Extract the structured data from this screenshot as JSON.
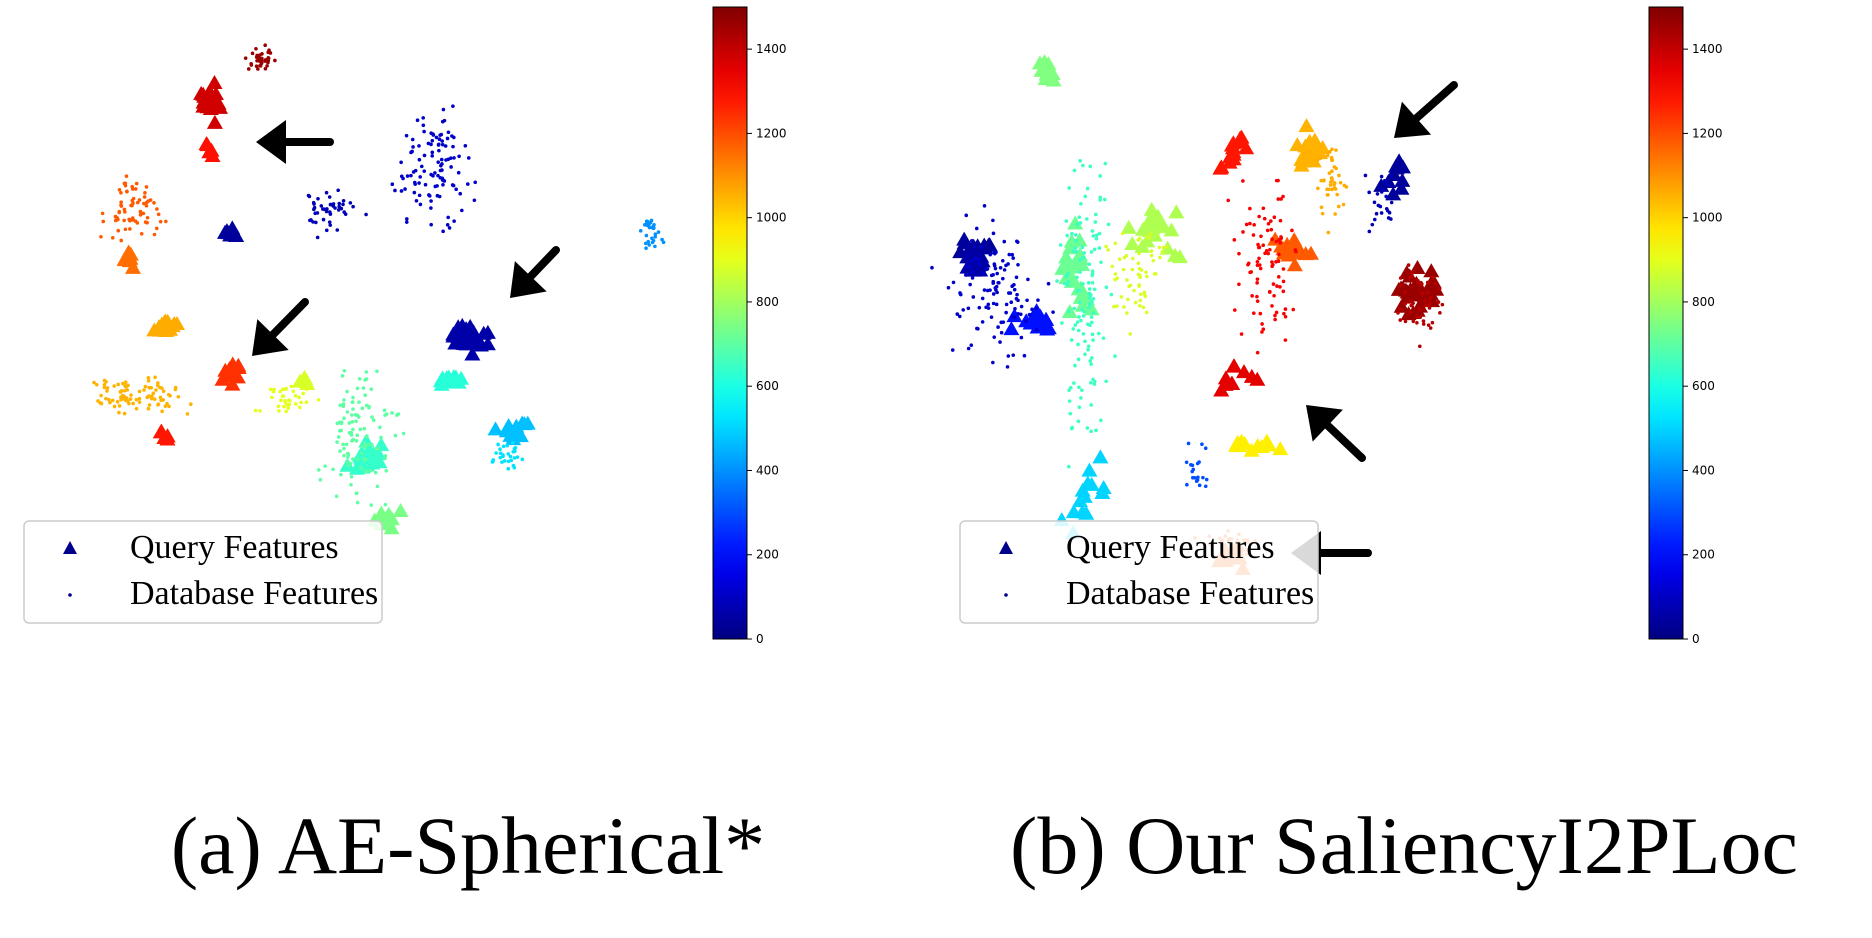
{
  "colors": {
    "query_marker": "#00008b",
    "database_marker": "#00008b",
    "arrow": "#000000",
    "legend_border": "#cccccc"
  },
  "colormap": "jet",
  "chart_data": [
    {
      "type": "scatter",
      "title": "(a) AE-Spherical*",
      "xlabel": "",
      "ylabel": "",
      "grid": false,
      "legend_position": "bottom-left",
      "legend": [
        "Query Features",
        "Database Features"
      ],
      "colorbar": {
        "range": [
          0,
          1500
        ],
        "ticks": [
          0,
          200,
          400,
          600,
          800,
          1000,
          1200,
          1400
        ]
      },
      "arrows": [
        {
          "from": [
            330,
            142
          ],
          "to": [
            256,
            142
          ]
        },
        {
          "from": [
            556,
            250
          ],
          "to": [
            510,
            298
          ]
        },
        {
          "from": [
            305,
            302
          ],
          "to": [
            252,
            356
          ]
        }
      ],
      "clusters": [
        {
          "kind": "query",
          "value": 1380,
          "center": [
            210,
            100
          ],
          "spread": [
            22,
            30
          ],
          "count": 26
        },
        {
          "kind": "database",
          "value": 1460,
          "center": [
            262,
            60
          ],
          "spread": [
            22,
            20
          ],
          "count": 40
        },
        {
          "kind": "query",
          "value": 1290,
          "center": [
            208,
            150
          ],
          "spread": [
            8,
            12
          ],
          "count": 5
        },
        {
          "kind": "query",
          "value": 40,
          "center": [
            232,
            232
          ],
          "spread": [
            18,
            8
          ],
          "count": 8
        },
        {
          "kind": "query",
          "value": 60,
          "center": [
            466,
            340
          ],
          "spread": [
            32,
            25
          ],
          "count": 34
        },
        {
          "kind": "query",
          "value": 620,
          "center": [
            452,
            380
          ],
          "spread": [
            20,
            12
          ],
          "count": 10
        },
        {
          "kind": "query",
          "value": 470,
          "center": [
            515,
            432
          ],
          "spread": [
            24,
            14
          ],
          "count": 14
        },
        {
          "kind": "query",
          "value": 1150,
          "center": [
            130,
            260
          ],
          "spread": [
            12,
            18
          ],
          "count": 10
        },
        {
          "kind": "query",
          "value": 1060,
          "center": [
            165,
            328
          ],
          "spread": [
            22,
            15
          ],
          "count": 14
        },
        {
          "kind": "query",
          "value": 1240,
          "center": [
            232,
            376
          ],
          "spread": [
            20,
            18
          ],
          "count": 16
        },
        {
          "kind": "query",
          "value": 1280,
          "center": [
            162,
            436
          ],
          "spread": [
            14,
            10
          ],
          "count": 6
        },
        {
          "kind": "query",
          "value": 640,
          "center": [
            365,
            460
          ],
          "spread": [
            28,
            26
          ],
          "count": 26
        },
        {
          "kind": "query",
          "value": 740,
          "center": [
            390,
            520
          ],
          "spread": [
            22,
            24
          ],
          "count": 10
        },
        {
          "kind": "query",
          "value": 880,
          "center": [
            305,
            380
          ],
          "spread": [
            12,
            12
          ],
          "count": 6
        },
        {
          "kind": "database",
          "value": 110,
          "center": [
            435,
            170
          ],
          "spread": [
            60,
            95
          ],
          "count": 110
        },
        {
          "kind": "database",
          "value": 80,
          "center": [
            330,
            210
          ],
          "spread": [
            45,
            38
          ],
          "count": 45
        },
        {
          "kind": "database",
          "value": 400,
          "center": [
            650,
            232
          ],
          "spread": [
            18,
            28
          ],
          "count": 30
        },
        {
          "kind": "database",
          "value": 1180,
          "center": [
            130,
            210
          ],
          "spread": [
            55,
            45
          ],
          "count": 70
        },
        {
          "kind": "database",
          "value": 1050,
          "center": [
            140,
            395
          ],
          "spread": [
            90,
            32
          ],
          "count": 90
        },
        {
          "kind": "database",
          "value": 700,
          "center": [
            360,
            440
          ],
          "spread": [
            60,
            110
          ],
          "count": 110
        },
        {
          "kind": "database",
          "value": 520,
          "center": [
            505,
            455
          ],
          "spread": [
            25,
            25
          ],
          "count": 30
        },
        {
          "kind": "database",
          "value": 900,
          "center": [
            290,
            400
          ],
          "spread": [
            45,
            30
          ],
          "count": 35
        }
      ]
    },
    {
      "type": "scatter",
      "title": "(b) Our SaliencyI2PLoc",
      "xlabel": "",
      "ylabel": "",
      "grid": false,
      "legend_position": "bottom-left",
      "legend": [
        "Query Features",
        "Database Features"
      ],
      "colorbar": {
        "range": [
          0,
          1500
        ],
        "ticks": [
          0,
          200,
          400,
          600,
          800,
          1000,
          1200,
          1400
        ]
      },
      "arrows": [
        {
          "from": [
            518,
            85
          ],
          "to": [
            458,
            138
          ]
        },
        {
          "from": [
            426,
            458
          ],
          "to": [
            370,
            405
          ]
        },
        {
          "from": [
            432,
            553
          ],
          "to": [
            355,
            553
          ]
        }
      ],
      "clusters": [
        {
          "kind": "query",
          "value": 40,
          "center": [
            40,
            250
          ],
          "spread": [
            38,
            32
          ],
          "count": 16
        },
        {
          "kind": "query",
          "value": 60,
          "center": [
            40,
            262
          ],
          "spread": [
            18,
            14
          ],
          "count": 18
        },
        {
          "kind": "query",
          "value": 210,
          "center": [
            100,
            320
          ],
          "spread": [
            35,
            20
          ],
          "count": 16
        },
        {
          "kind": "query",
          "value": 750,
          "center": [
            112,
            70
          ],
          "spread": [
            15,
            28
          ],
          "count": 12
        },
        {
          "kind": "query",
          "value": 720,
          "center": [
            140,
            270
          ],
          "spread": [
            25,
            80
          ],
          "count": 26
        },
        {
          "kind": "query",
          "value": 820,
          "center": [
            218,
            230
          ],
          "spread": [
            45,
            45
          ],
          "count": 20
        },
        {
          "kind": "query",
          "value": 1280,
          "center": [
            300,
            150
          ],
          "spread": [
            30,
            35
          ],
          "count": 14
        },
        {
          "kind": "query",
          "value": 1050,
          "center": [
            375,
            150
          ],
          "spread": [
            25,
            45
          ],
          "count": 18
        },
        {
          "kind": "query",
          "value": 1180,
          "center": [
            355,
            250
          ],
          "spread": [
            30,
            25
          ],
          "count": 16
        },
        {
          "kind": "query",
          "value": 1460,
          "center": [
            480,
            290
          ],
          "spread": [
            40,
            40
          ],
          "count": 32
        },
        {
          "kind": "query",
          "value": 40,
          "center": [
            460,
            180
          ],
          "spread": [
            25,
            40
          ],
          "count": 10
        },
        {
          "kind": "query",
          "value": 1350,
          "center": [
            300,
            380
          ],
          "spread": [
            40,
            25
          ],
          "count": 10
        },
        {
          "kind": "query",
          "value": 960,
          "center": [
            320,
            445
          ],
          "spread": [
            40,
            10
          ],
          "count": 12
        },
        {
          "kind": "query",
          "value": 1160,
          "center": [
            295,
            555
          ],
          "spread": [
            25,
            20
          ],
          "count": 10
        },
        {
          "kind": "query",
          "value": 500,
          "center": [
            150,
            500
          ],
          "spread": [
            35,
            60
          ],
          "count": 14
        },
        {
          "kind": "database",
          "value": 110,
          "center": [
            60,
            290
          ],
          "spread": [
            75,
            110
          ],
          "count": 120
        },
        {
          "kind": "database",
          "value": 650,
          "center": [
            150,
            300
          ],
          "spread": [
            40,
            220
          ],
          "count": 130
        },
        {
          "kind": "database",
          "value": 880,
          "center": [
            200,
            270
          ],
          "spread": [
            50,
            80
          ],
          "count": 60
        },
        {
          "kind": "database",
          "value": 1320,
          "center": [
            330,
            270
          ],
          "spread": [
            50,
            140
          ],
          "count": 90
        },
        {
          "kind": "database",
          "value": 1060,
          "center": [
            395,
            180
          ],
          "spread": [
            35,
            70
          ],
          "count": 45
        },
        {
          "kind": "database",
          "value": 1420,
          "center": [
            485,
            300
          ],
          "spread": [
            40,
            60
          ],
          "count": 50
        },
        {
          "kind": "database",
          "value": 80,
          "center": [
            445,
            200
          ],
          "spread": [
            25,
            45
          ],
          "count": 25
        },
        {
          "kind": "database",
          "value": 1180,
          "center": [
            295,
            545
          ],
          "spread": [
            50,
            20
          ],
          "count": 30
        },
        {
          "kind": "database",
          "value": 300,
          "center": [
            260,
            470
          ],
          "spread": [
            20,
            40
          ],
          "count": 20
        }
      ]
    }
  ]
}
